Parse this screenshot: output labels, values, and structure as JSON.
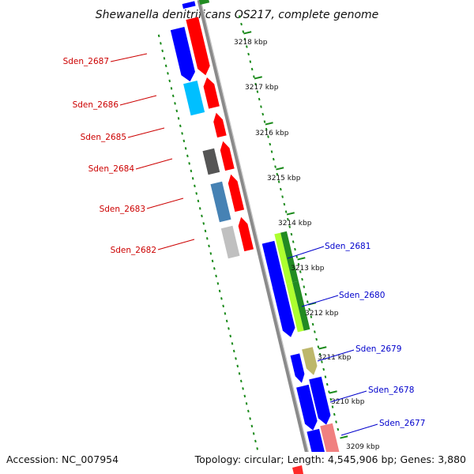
{
  "title": "Shewanella denitrificans OS217, complete genome",
  "footer": {
    "accession": "Accession: NC_007954",
    "summary": "Topology: circular; Length: 4,545,906 bp; Genes: 3,880"
  },
  "colors": {
    "backbone": "#8a8a8a",
    "tick": "#1a8a1a",
    "label_red": "#cc0000",
    "label_blue": "#0000cc"
  },
  "scale_ticks": [
    {
      "label": "3218 kbp"
    },
    {
      "label": "3217 kbp"
    },
    {
      "label": "3216 kbp"
    },
    {
      "label": "3215 kbp"
    },
    {
      "label": "3214 kbp"
    },
    {
      "label": "3213 kbp"
    },
    {
      "label": "3212 kbp"
    },
    {
      "label": "3211 kbp"
    },
    {
      "label": "3210 kbp"
    },
    {
      "label": "3209 kbp"
    }
  ],
  "genes_left": [
    {
      "name": "Sden_2687"
    },
    {
      "name": "Sden_2686"
    },
    {
      "name": "Sden_2685"
    },
    {
      "name": "Sden_2684"
    },
    {
      "name": "Sden_2683"
    },
    {
      "name": "Sden_2682"
    }
  ],
  "genes_right": [
    {
      "name": "Sden_2681"
    },
    {
      "name": "Sden_2680"
    },
    {
      "name": "Sden_2679"
    },
    {
      "name": "Sden_2678"
    },
    {
      "name": "Sden_2677"
    }
  ]
}
